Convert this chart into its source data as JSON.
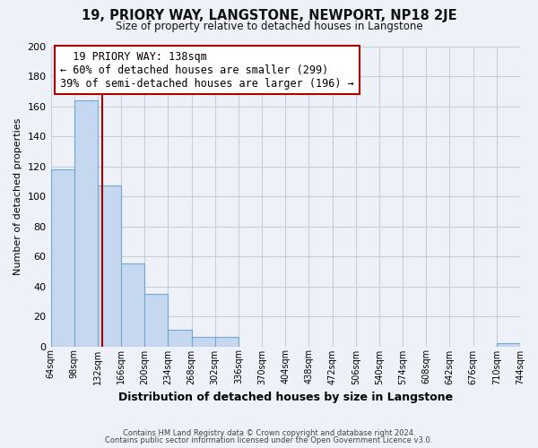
{
  "title": "19, PRIORY WAY, LANGSTONE, NEWPORT, NP18 2JE",
  "subtitle": "Size of property relative to detached houses in Langstone",
  "xlabel": "Distribution of detached houses by size in Langstone",
  "ylabel": "Number of detached properties",
  "footer_line1": "Contains HM Land Registry data © Crown copyright and database right 2024.",
  "footer_line2": "Contains public sector information licensed under the Open Government Licence v3.0.",
  "annotation_title": "19 PRIORY WAY: 138sqm",
  "annotation_line1": "← 60% of detached houses are smaller (299)",
  "annotation_line2": "39% of semi-detached houses are larger (196) →",
  "bar_color": "#c5d8ef",
  "bar_edge_color": "#6fa8d0",
  "vline_color": "#aa0000",
  "vline_x": 138,
  "bin_edges": [
    64,
    98,
    132,
    166,
    200,
    234,
    268,
    302,
    336,
    370,
    404,
    438,
    472,
    506,
    540,
    574,
    608,
    642,
    676,
    710,
    744
  ],
  "bin_counts": [
    118,
    164,
    107,
    55,
    35,
    11,
    6,
    6,
    0,
    0,
    0,
    0,
    0,
    0,
    0,
    0,
    0,
    0,
    0,
    2
  ],
  "ylim": [
    0,
    200
  ],
  "yticks": [
    0,
    20,
    40,
    60,
    80,
    100,
    120,
    140,
    160,
    180,
    200
  ],
  "background_color": "#eef2f8",
  "grid_color": "#c5cfe0",
  "annotation_box_color": "#ffffff",
  "annotation_box_edge": "#aa0000"
}
